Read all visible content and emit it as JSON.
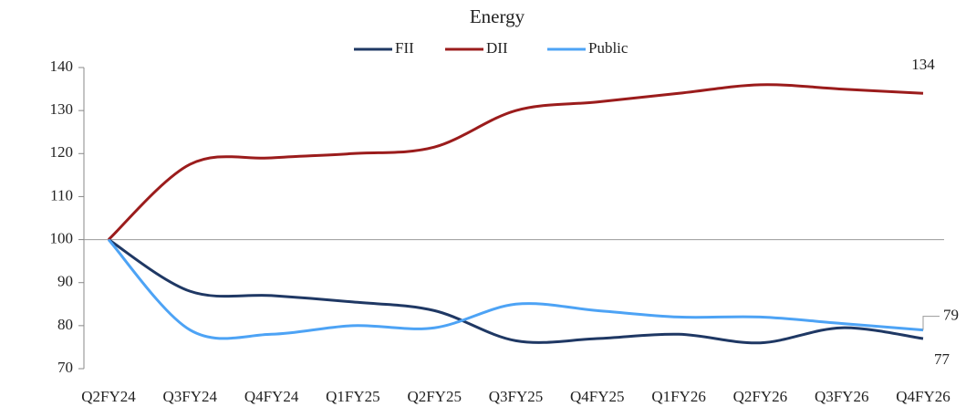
{
  "chart_data": {
    "type": "line",
    "title": "Energy",
    "categories": [
      "Q2FY24",
      "Q3FY24",
      "Q4FY24",
      "Q1FY25",
      "Q2FY25",
      "Q3FY25",
      "Q4FY25",
      "Q1FY26",
      "Q2FY26",
      "Q3FY26",
      "Q4FY26"
    ],
    "series": [
      {
        "name": "FII",
        "color": "#1f3864",
        "values": [
          100,
          88,
          87,
          85.5,
          83.5,
          76.5,
          77,
          78,
          76,
          79.5,
          77
        ],
        "value_labels": [
          null,
          null,
          null,
          null,
          null,
          null,
          null,
          null,
          null,
          null,
          "77"
        ]
      },
      {
        "name": "DII",
        "color": "#9b1c1c",
        "values": [
          100,
          117.5,
          119,
          120,
          121.5,
          130,
          132,
          134,
          136,
          135,
          134
        ],
        "value_labels": [
          null,
          null,
          null,
          null,
          null,
          null,
          null,
          null,
          null,
          null,
          "134"
        ]
      },
      {
        "name": "Public",
        "color": "#4da3f5",
        "values": [
          100,
          79,
          78,
          80,
          79.5,
          85,
          83.5,
          82,
          82,
          80.5,
          79
        ],
        "value_labels": [
          null,
          null,
          null,
          null,
          null,
          null,
          null,
          null,
          null,
          null,
          "79"
        ]
      }
    ],
    "ylim": [
      70,
      140
    ],
    "yticks": [
      70,
      80,
      90,
      100,
      110,
      120,
      130,
      140
    ],
    "reference_line": 100,
    "legend": "top",
    "grid": false
  }
}
